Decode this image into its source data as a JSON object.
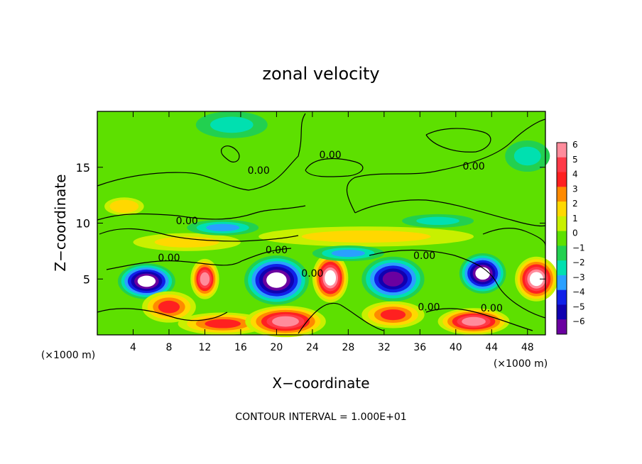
{
  "chart_data": {
    "type": "heatmap",
    "title": "zonal velocity",
    "xlabel": "X−coordinate",
    "ylabel": "Z−coordinate",
    "x_unit_left": "(×1000 m)",
    "x_unit_right": "(×1000 m)",
    "xlim": [
      0,
      50
    ],
    "ylim": [
      0,
      20
    ],
    "x_ticks": [
      4,
      8,
      12,
      16,
      20,
      24,
      28,
      32,
      36,
      40,
      44,
      48
    ],
    "y_ticks": [
      5,
      10,
      15
    ],
    "colorbar": {
      "levels": [
        "6",
        "5",
        "4",
        "3",
        "2",
        "1",
        "0",
        "−1",
        "−2",
        "−3",
        "−4",
        "−5",
        "−6"
      ],
      "colors": [
        "#ff8c9c",
        "#ff3a48",
        "#ff2020",
        "#ff8a00",
        "#ffd800",
        "#c8f000",
        "#5de000",
        "#22d050",
        "#00e0b0",
        "#2aa0ff",
        "#1020e8",
        "#1000b0",
        "#6a00a0"
      ]
    },
    "contour_labels": [
      {
        "text": "0.00",
        "x": 10,
        "z": 9.9
      },
      {
        "text": "0.00",
        "x": 8,
        "z": 6.6
      },
      {
        "text": "0.00",
        "x": 20,
        "z": 7.3
      },
      {
        "text": "0.00",
        "x": 26,
        "z": 15.8
      },
      {
        "text": "0.00",
        "x": 18,
        "z": 14.4
      },
      {
        "text": "0.00",
        "x": 24,
        "z": 5.2
      },
      {
        "text": "0.00",
        "x": 36.5,
        "z": 6.8
      },
      {
        "text": "0.00",
        "x": 42,
        "z": 14.8
      },
      {
        "text": "0.00",
        "x": 37,
        "z": 2.2
      },
      {
        "text": "0.00",
        "x": 44,
        "z": 2.1
      }
    ],
    "field_features": [
      {
        "x": 5.5,
        "z": 4.8,
        "v": -7,
        "rx": 3.2,
        "rz": 1.6
      },
      {
        "x": 12,
        "z": 5,
        "v": 6,
        "rx": 1.6,
        "rz": 1.8
      },
      {
        "x": 20,
        "z": 4.9,
        "v": -7,
        "rx": 3.6,
        "rz": 2.2
      },
      {
        "x": 26,
        "z": 5.1,
        "v": 7,
        "rx": 2.0,
        "rz": 2.2
      },
      {
        "x": 33,
        "z": 5,
        "v": -6,
        "rx": 3.5,
        "rz": 2
      },
      {
        "x": 43,
        "z": 5.5,
        "v": -7,
        "rx": 2.6,
        "rz": 1.8
      },
      {
        "x": 49,
        "z": 5,
        "v": 7,
        "rx": 2.4,
        "rz": 2
      },
      {
        "x": 8,
        "z": 2.5,
        "v": 4,
        "rx": 3.0,
        "rz": 1.4
      },
      {
        "x": 14,
        "z": 1,
        "v": 4,
        "rx": 5,
        "rz": 1
      },
      {
        "x": 21,
        "z": 1.2,
        "v": 6,
        "rx": 4.5,
        "rz": 1.4
      },
      {
        "x": 33,
        "z": 1.8,
        "v": 4,
        "rx": 3.5,
        "rz": 1.2
      },
      {
        "x": 42,
        "z": 1.2,
        "v": 6,
        "rx": 4,
        "rz": 1.2
      },
      {
        "x": 10,
        "z": 8.3,
        "v": 2,
        "rx": 6,
        "rz": 0.8
      },
      {
        "x": 30,
        "z": 8.8,
        "v": 2,
        "rx": 12,
        "rz": 0.9
      },
      {
        "x": 3,
        "z": 11.5,
        "v": 2.5,
        "rx": 2.2,
        "rz": 0.8
      },
      {
        "x": 14,
        "z": 9.6,
        "v": -2.5,
        "rx": 4,
        "rz": 0.7
      },
      {
        "x": 38,
        "z": 10.2,
        "v": -2,
        "rx": 4,
        "rz": 0.6
      },
      {
        "x": 28,
        "z": 7.3,
        "v": -2.5,
        "rx": 4,
        "rz": 0.7
      },
      {
        "x": 15,
        "z": 18.8,
        "v": -1.5,
        "rx": 4,
        "rz": 1.2
      },
      {
        "x": 48,
        "z": 16,
        "v": -1.5,
        "rx": 2.5,
        "rz": 1.4
      }
    ]
  },
  "footer": {
    "contour_interval": "CONTOUR INTERVAL = 1.000E+01"
  }
}
